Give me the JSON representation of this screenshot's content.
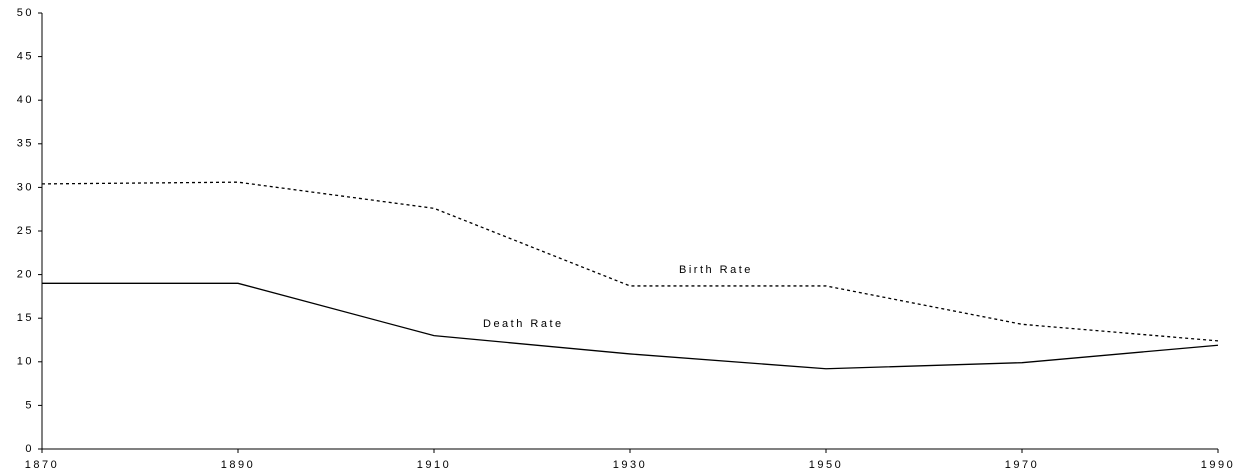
{
  "chart_data": {
    "type": "line",
    "x": [
      1870,
      1890,
      1910,
      1930,
      1950,
      1970,
      1990
    ],
    "series": [
      {
        "name": "Birth Rate",
        "color": "#000000",
        "dash": true,
        "values": [
          30.4,
          30.6,
          27.6,
          18.7,
          18.7,
          14.3,
          12.4
        ]
      },
      {
        "name": "Death Rate",
        "color": "#000000",
        "dash": false,
        "values": [
          19.0,
          19.0,
          13.0,
          10.9,
          9.2,
          9.9,
          11.9
        ]
      }
    ],
    "xlim": [
      1870,
      1990
    ],
    "xticks": [
      1870,
      1890,
      1910,
      1930,
      1950,
      1970,
      1990
    ],
    "ylim": [
      0,
      50
    ],
    "yticks": [
      0,
      5,
      10,
      15,
      20,
      25,
      30,
      35,
      40,
      45,
      50
    ],
    "grid": false
  }
}
